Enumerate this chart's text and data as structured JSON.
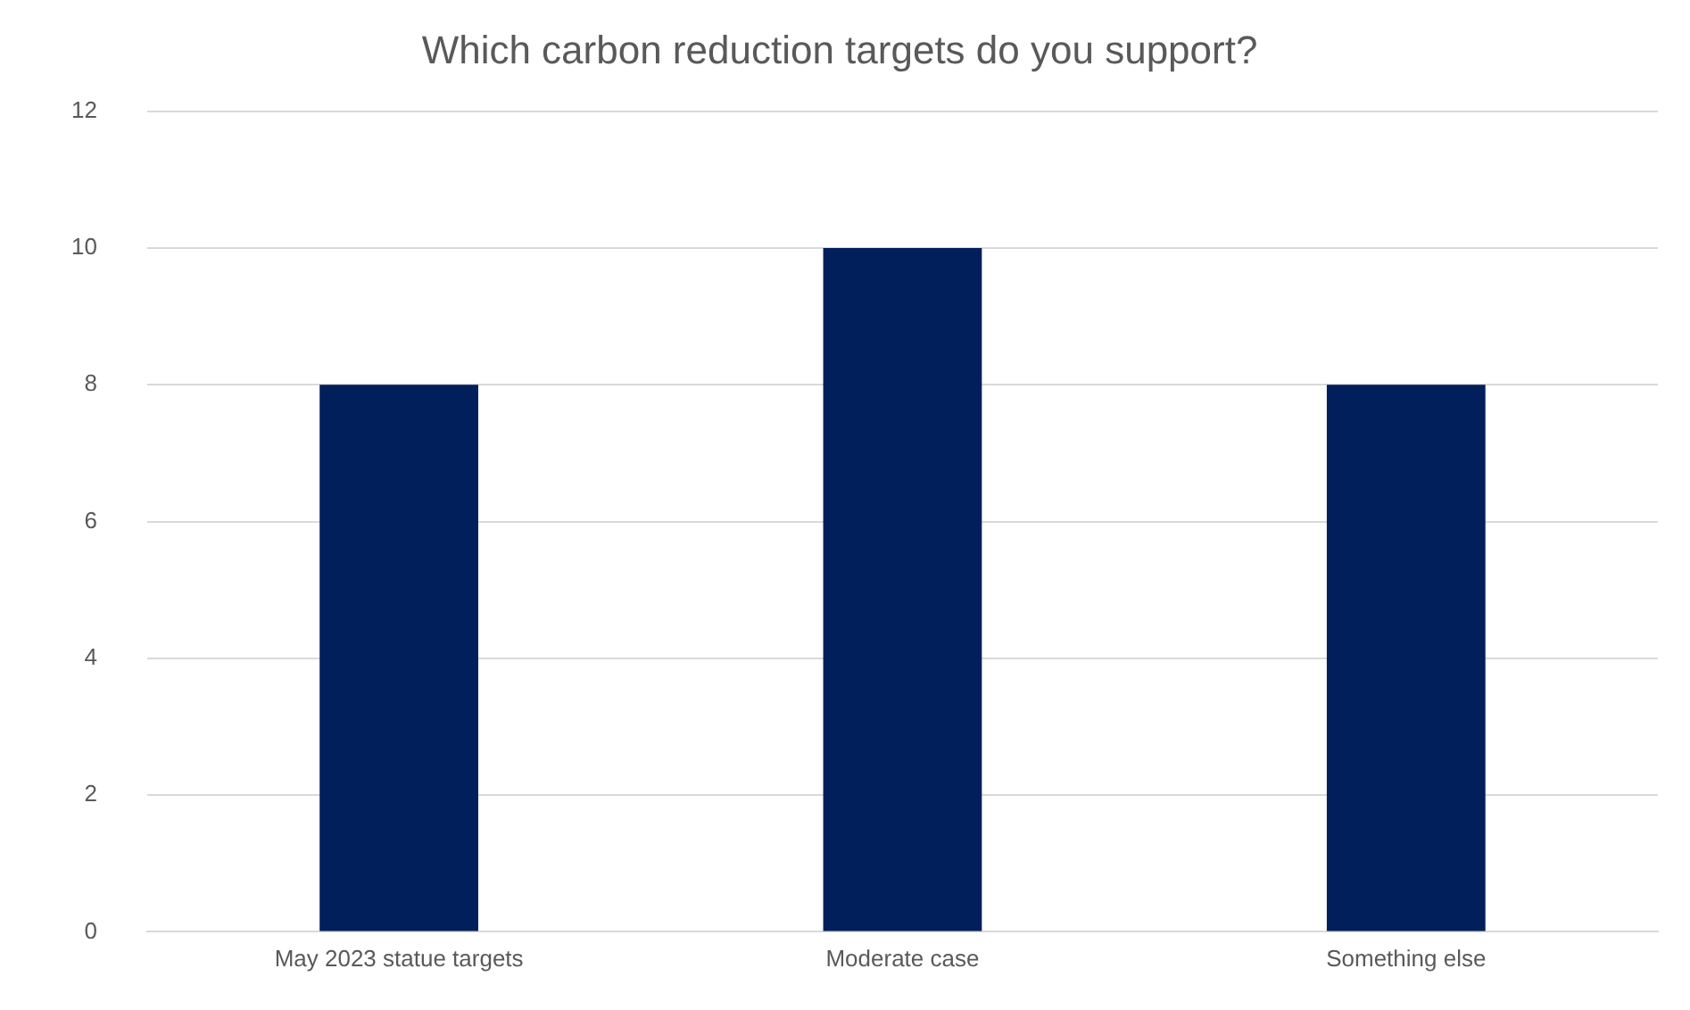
{
  "chart_data": {
    "type": "bar",
    "title": "Which carbon reduction targets do you support?",
    "categories": [
      "May 2023 statue targets",
      "Moderate case",
      "Something else"
    ],
    "values": [
      8,
      10,
      8
    ],
    "color": "#001f5b",
    "ylim": [
      0,
      12
    ],
    "yticks": [
      0,
      2,
      4,
      6,
      8,
      10,
      12
    ],
    "grid": "y"
  }
}
